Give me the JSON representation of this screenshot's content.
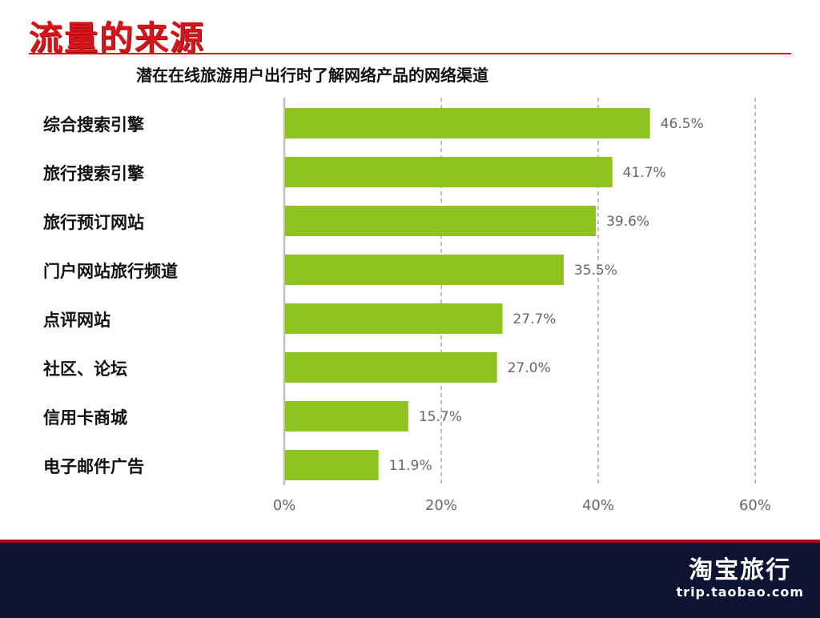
{
  "slide": {
    "title": "流量的来源"
  },
  "brand": {
    "name": "淘宝旅行",
    "url": "trip.taobao.com"
  },
  "chart_data": {
    "type": "bar",
    "orientation": "horizontal",
    "title": "潜在在线旅游用户出行时了解网络产品的网络渠道",
    "categories": [
      "综合搜索引擎",
      "旅行搜索引擎",
      "旅行预订网站",
      "门户网站旅行频道",
      "点评网站",
      "社区、论坛",
      "信用卡商城",
      "电子邮件广告"
    ],
    "values": [
      46.5,
      41.7,
      39.6,
      35.5,
      27.7,
      27.0,
      15.7,
      11.9
    ],
    "value_labels": [
      "46.5%",
      "41.7%",
      "39.6%",
      "35.5%",
      "27.7%",
      "27.0%",
      "15.7%",
      "11.9%"
    ],
    "xlim": [
      0,
      60
    ],
    "xticks": [
      0,
      20,
      40,
      60
    ],
    "xtick_labels": [
      "0%",
      "20%",
      "40%",
      "60%"
    ],
    "grid": true,
    "bar_color": "#8dc21f"
  }
}
